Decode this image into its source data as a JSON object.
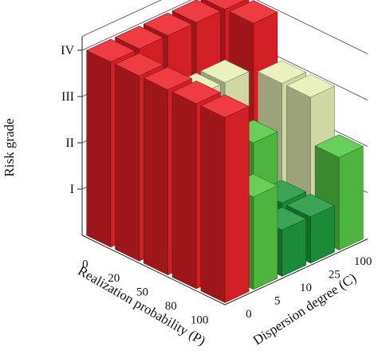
{
  "chart_data": {
    "type": "bar3d",
    "title": "",
    "zlabel": "Risk grade",
    "z_ticks": [
      "I",
      "II",
      "III",
      "IV"
    ],
    "xlabel": "Realization probability (P)",
    "x_categories": [
      "0",
      "20",
      "50",
      "80",
      "100"
    ],
    "ylabel": "Dispersion degree (C)",
    "y_categories": [
      "0",
      "5",
      "10",
      "25",
      "100"
    ],
    "grades": [
      [
        4,
        4,
        4,
        4,
        4
      ],
      [
        4,
        3,
        3,
        3,
        4
      ],
      [
        4,
        3,
        2,
        2,
        3
      ],
      [
        4,
        2,
        1,
        1,
        3
      ],
      [
        4,
        2,
        1,
        1,
        2
      ]
    ],
    "grade_colors": {
      "1": "#1f9a3e",
      "2": "#55c845",
      "3": "#e6efb4",
      "4": "#ea2128"
    },
    "grid": true
  }
}
